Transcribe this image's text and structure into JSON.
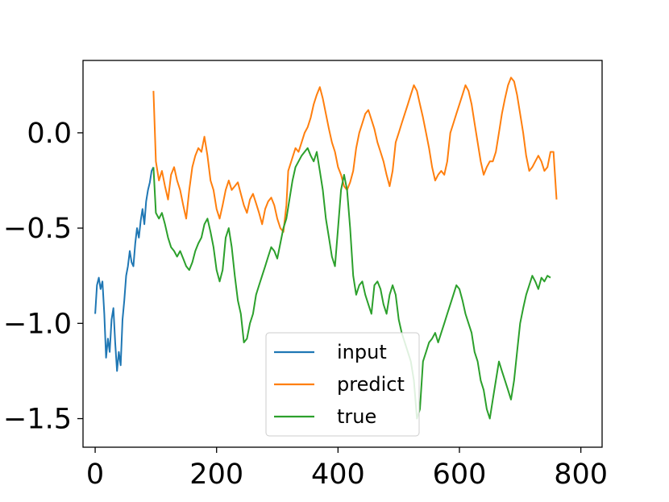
{
  "chart_data": {
    "type": "line",
    "title": "",
    "xlabel": "",
    "ylabel": "",
    "xlim": [
      -20,
      835
    ],
    "ylim": [
      -1.65,
      0.38
    ],
    "grid": false,
    "legend_placement": "lower-center",
    "x_ticks": [
      0,
      200,
      400,
      600,
      800
    ],
    "x_tick_labels": [
      "0",
      "200",
      "400",
      "600",
      "800"
    ],
    "y_ticks": [
      0.0,
      -0.5,
      -1.0,
      -1.5
    ],
    "y_tick_labels": [
      "0.0",
      "−0.5",
      "−1.0",
      "−1.5"
    ],
    "series": [
      {
        "name": "input",
        "color": "#1f77b4",
        "points": [
          [
            0,
            -0.95
          ],
          [
            3,
            -0.8
          ],
          [
            6,
            -0.76
          ],
          [
            9,
            -0.82
          ],
          [
            12,
            -0.78
          ],
          [
            15,
            -0.95
          ],
          [
            18,
            -1.18
          ],
          [
            21,
            -1.08
          ],
          [
            24,
            -1.15
          ],
          [
            27,
            -0.98
          ],
          [
            30,
            -0.92
          ],
          [
            33,
            -1.1
          ],
          [
            36,
            -1.25
          ],
          [
            39,
            -1.15
          ],
          [
            42,
            -1.22
          ],
          [
            45,
            -0.98
          ],
          [
            48,
            -0.88
          ],
          [
            51,
            -0.75
          ],
          [
            54,
            -0.7
          ],
          [
            57,
            -0.62
          ],
          [
            60,
            -0.68
          ],
          [
            63,
            -0.7
          ],
          [
            66,
            -0.58
          ],
          [
            69,
            -0.5
          ],
          [
            72,
            -0.55
          ],
          [
            75,
            -0.46
          ],
          [
            78,
            -0.4
          ],
          [
            81,
            -0.48
          ],
          [
            84,
            -0.36
          ],
          [
            87,
            -0.3
          ],
          [
            90,
            -0.26
          ],
          [
            93,
            -0.2
          ],
          [
            96,
            -0.18
          ]
        ]
      },
      {
        "name": "predict",
        "color": "#ff7f0e",
        "points": [
          [
            96,
            0.22
          ],
          [
            100,
            -0.15
          ],
          [
            105,
            -0.25
          ],
          [
            110,
            -0.2
          ],
          [
            115,
            -0.28
          ],
          [
            120,
            -0.35
          ],
          [
            125,
            -0.22
          ],
          [
            130,
            -0.18
          ],
          [
            135,
            -0.25
          ],
          [
            140,
            -0.3
          ],
          [
            145,
            -0.38
          ],
          [
            150,
            -0.45
          ],
          [
            155,
            -0.3
          ],
          [
            160,
            -0.18
          ],
          [
            165,
            -0.12
          ],
          [
            170,
            -0.08
          ],
          [
            175,
            -0.1
          ],
          [
            180,
            -0.02
          ],
          [
            185,
            -0.12
          ],
          [
            190,
            -0.25
          ],
          [
            195,
            -0.3
          ],
          [
            200,
            -0.4
          ],
          [
            205,
            -0.45
          ],
          [
            210,
            -0.38
          ],
          [
            215,
            -0.3
          ],
          [
            220,
            -0.25
          ],
          [
            225,
            -0.3
          ],
          [
            230,
            -0.28
          ],
          [
            235,
            -0.26
          ],
          [
            240,
            -0.32
          ],
          [
            245,
            -0.38
          ],
          [
            250,
            -0.42
          ],
          [
            255,
            -0.35
          ],
          [
            260,
            -0.32
          ],
          [
            265,
            -0.37
          ],
          [
            270,
            -0.42
          ],
          [
            275,
            -0.48
          ],
          [
            280,
            -0.4
          ],
          [
            285,
            -0.36
          ],
          [
            290,
            -0.34
          ],
          [
            295,
            -0.38
          ],
          [
            300,
            -0.45
          ],
          [
            305,
            -0.5
          ],
          [
            310,
            -0.52
          ],
          [
            315,
            -0.38
          ],
          [
            318,
            -0.2
          ],
          [
            322,
            -0.16
          ],
          [
            326,
            -0.12
          ],
          [
            330,
            -0.08
          ],
          [
            335,
            -0.1
          ],
          [
            340,
            -0.05
          ],
          [
            345,
            0.0
          ],
          [
            350,
            0.03
          ],
          [
            355,
            0.08
          ],
          [
            360,
            0.15
          ],
          [
            365,
            0.2
          ],
          [
            370,
            0.24
          ],
          [
            375,
            0.18
          ],
          [
            380,
            0.1
          ],
          [
            385,
            0.02
          ],
          [
            390,
            -0.05
          ],
          [
            395,
            -0.1
          ],
          [
            400,
            -0.18
          ],
          [
            405,
            -0.22
          ],
          [
            410,
            -0.28
          ],
          [
            415,
            -0.3
          ],
          [
            420,
            -0.26
          ],
          [
            425,
            -0.2
          ],
          [
            430,
            -0.08
          ],
          [
            435,
            0.0
          ],
          [
            440,
            0.05
          ],
          [
            445,
            0.1
          ],
          [
            450,
            0.12
          ],
          [
            455,
            0.07
          ],
          [
            460,
            0.02
          ],
          [
            465,
            -0.05
          ],
          [
            470,
            -0.1
          ],
          [
            475,
            -0.15
          ],
          [
            480,
            -0.22
          ],
          [
            485,
            -0.28
          ],
          [
            490,
            -0.2
          ],
          [
            495,
            -0.05
          ],
          [
            500,
            0.0
          ],
          [
            505,
            0.05
          ],
          [
            510,
            0.1
          ],
          [
            515,
            0.15
          ],
          [
            520,
            0.2
          ],
          [
            525,
            0.25
          ],
          [
            530,
            0.22
          ],
          [
            535,
            0.15
          ],
          [
            540,
            0.08
          ],
          [
            545,
            0.0
          ],
          [
            550,
            -0.08
          ],
          [
            555,
            -0.18
          ],
          [
            560,
            -0.25
          ],
          [
            565,
            -0.22
          ],
          [
            570,
            -0.2
          ],
          [
            575,
            -0.22
          ],
          [
            580,
            -0.15
          ],
          [
            585,
            0.0
          ],
          [
            590,
            0.05
          ],
          [
            595,
            0.1
          ],
          [
            600,
            0.15
          ],
          [
            605,
            0.2
          ],
          [
            610,
            0.25
          ],
          [
            615,
            0.22
          ],
          [
            620,
            0.15
          ],
          [
            625,
            0.05
          ],
          [
            630,
            -0.05
          ],
          [
            635,
            -0.15
          ],
          [
            640,
            -0.22
          ],
          [
            645,
            -0.18
          ],
          [
            650,
            -0.15
          ],
          [
            655,
            -0.15
          ],
          [
            660,
            -0.1
          ],
          [
            665,
            0.0
          ],
          [
            670,
            0.1
          ],
          [
            675,
            0.18
          ],
          [
            680,
            0.25
          ],
          [
            685,
            0.29
          ],
          [
            690,
            0.27
          ],
          [
            695,
            0.2
          ],
          [
            700,
            0.1
          ],
          [
            705,
            0.0
          ],
          [
            710,
            -0.12
          ],
          [
            715,
            -0.2
          ],
          [
            720,
            -0.18
          ],
          [
            725,
            -0.15
          ],
          [
            730,
            -0.12
          ],
          [
            735,
            -0.15
          ],
          [
            740,
            -0.2
          ],
          [
            745,
            -0.18
          ],
          [
            750,
            -0.1
          ],
          [
            755,
            -0.1
          ],
          [
            760,
            -0.35
          ]
        ]
      },
      {
        "name": "true",
        "color": "#2ca02c",
        "points": [
          [
            96,
            -0.18
          ],
          [
            100,
            -0.42
          ],
          [
            105,
            -0.45
          ],
          [
            110,
            -0.42
          ],
          [
            115,
            -0.48
          ],
          [
            120,
            -0.55
          ],
          [
            125,
            -0.6
          ],
          [
            130,
            -0.62
          ],
          [
            135,
            -0.65
          ],
          [
            140,
            -0.62
          ],
          [
            145,
            -0.66
          ],
          [
            150,
            -0.7
          ],
          [
            155,
            -0.72
          ],
          [
            160,
            -0.68
          ],
          [
            165,
            -0.62
          ],
          [
            170,
            -0.58
          ],
          [
            175,
            -0.55
          ],
          [
            180,
            -0.48
          ],
          [
            185,
            -0.45
          ],
          [
            190,
            -0.52
          ],
          [
            195,
            -0.6
          ],
          [
            200,
            -0.72
          ],
          [
            205,
            -0.78
          ],
          [
            210,
            -0.72
          ],
          [
            215,
            -0.55
          ],
          [
            220,
            -0.5
          ],
          [
            225,
            -0.6
          ],
          [
            230,
            -0.75
          ],
          [
            235,
            -0.88
          ],
          [
            240,
            -0.95
          ],
          [
            245,
            -1.1
          ],
          [
            250,
            -1.08
          ],
          [
            255,
            -1.0
          ],
          [
            260,
            -0.95
          ],
          [
            265,
            -0.85
          ],
          [
            270,
            -0.8
          ],
          [
            275,
            -0.75
          ],
          [
            280,
            -0.7
          ],
          [
            285,
            -0.65
          ],
          [
            290,
            -0.6
          ],
          [
            295,
            -0.62
          ],
          [
            300,
            -0.66
          ],
          [
            305,
            -0.58
          ],
          [
            310,
            -0.5
          ],
          [
            315,
            -0.45
          ],
          [
            320,
            -0.35
          ],
          [
            325,
            -0.25
          ],
          [
            330,
            -0.18
          ],
          [
            335,
            -0.15
          ],
          [
            340,
            -0.12
          ],
          [
            345,
            -0.1
          ],
          [
            350,
            -0.08
          ],
          [
            355,
            -0.12
          ],
          [
            360,
            -0.15
          ],
          [
            365,
            -0.1
          ],
          [
            370,
            -0.2
          ],
          [
            375,
            -0.3
          ],
          [
            380,
            -0.45
          ],
          [
            385,
            -0.55
          ],
          [
            390,
            -0.65
          ],
          [
            395,
            -0.7
          ],
          [
            400,
            -0.5
          ],
          [
            405,
            -0.3
          ],
          [
            410,
            -0.22
          ],
          [
            415,
            -0.3
          ],
          [
            420,
            -0.5
          ],
          [
            425,
            -0.75
          ],
          [
            430,
            -0.85
          ],
          [
            435,
            -0.8
          ],
          [
            440,
            -0.78
          ],
          [
            445,
            -0.85
          ],
          [
            450,
            -0.9
          ],
          [
            455,
            -0.95
          ],
          [
            460,
            -0.8
          ],
          [
            465,
            -0.78
          ],
          [
            470,
            -0.82
          ],
          [
            475,
            -0.9
          ],
          [
            480,
            -0.95
          ],
          [
            485,
            -0.85
          ],
          [
            490,
            -0.8
          ],
          [
            495,
            -0.85
          ],
          [
            500,
            -0.98
          ],
          [
            505,
            -1.05
          ],
          [
            510,
            -1.1
          ],
          [
            515,
            -1.15
          ],
          [
            520,
            -1.2
          ],
          [
            525,
            -1.3
          ],
          [
            530,
            -1.5
          ],
          [
            535,
            -1.45
          ],
          [
            540,
            -1.2
          ],
          [
            545,
            -1.15
          ],
          [
            550,
            -1.1
          ],
          [
            555,
            -1.08
          ],
          [
            560,
            -1.05
          ],
          [
            565,
            -1.1
          ],
          [
            570,
            -1.05
          ],
          [
            575,
            -1.0
          ],
          [
            580,
            -0.95
          ],
          [
            585,
            -0.9
          ],
          [
            590,
            -0.85
          ],
          [
            595,
            -0.8
          ],
          [
            600,
            -0.82
          ],
          [
            605,
            -0.88
          ],
          [
            610,
            -0.95
          ],
          [
            615,
            -1.0
          ],
          [
            620,
            -1.05
          ],
          [
            625,
            -1.15
          ],
          [
            630,
            -1.2
          ],
          [
            635,
            -1.3
          ],
          [
            640,
            -1.35
          ],
          [
            645,
            -1.45
          ],
          [
            650,
            -1.5
          ],
          [
            655,
            -1.4
          ],
          [
            660,
            -1.3
          ],
          [
            665,
            -1.2
          ],
          [
            670,
            -1.25
          ],
          [
            675,
            -1.3
          ],
          [
            680,
            -1.35
          ],
          [
            685,
            -1.4
          ],
          [
            690,
            -1.3
          ],
          [
            695,
            -1.15
          ],
          [
            700,
            -1.0
          ],
          [
            705,
            -0.92
          ],
          [
            710,
            -0.85
          ],
          [
            715,
            -0.8
          ],
          [
            720,
            -0.75
          ],
          [
            725,
            -0.78
          ],
          [
            730,
            -0.82
          ],
          [
            735,
            -0.76
          ],
          [
            740,
            -0.78
          ],
          [
            745,
            -0.75
          ],
          [
            750,
            -0.76
          ]
        ]
      }
    ]
  }
}
